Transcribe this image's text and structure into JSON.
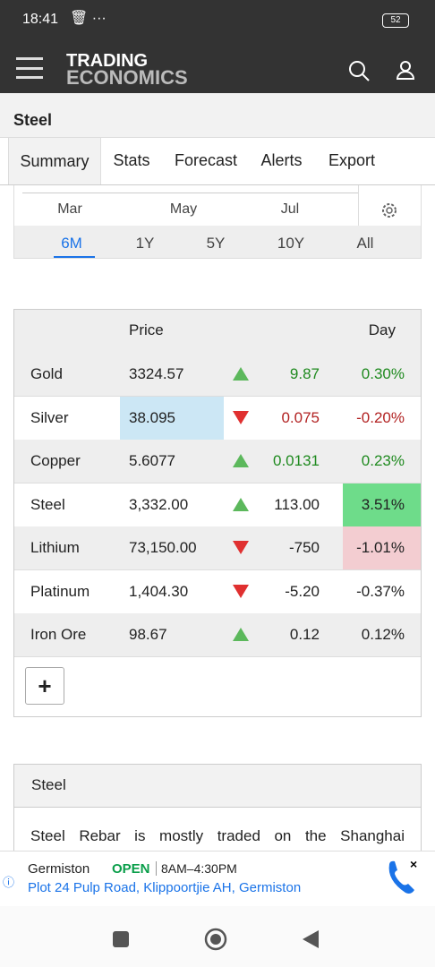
{
  "status_bar": {
    "time": "18:41",
    "battery": "52"
  },
  "header": {
    "logo_top": "TRADING",
    "logo_bottom": "ECONOMICS"
  },
  "page_title": "Steel",
  "tabs": [
    "Summary",
    "Stats",
    "Forecast",
    "Alerts",
    "Export"
  ],
  "active_tab": 0,
  "chart_axis_labels": [
    "Mar",
    "May",
    "Jul"
  ],
  "ranges": [
    "6M",
    "1Y",
    "5Y",
    "10Y",
    "All"
  ],
  "active_range": 0,
  "table": {
    "headers": [
      "Price",
      "Day"
    ],
    "rows": [
      {
        "name": "Gold",
        "price": "3324.57",
        "direction": "up",
        "change": "9.87",
        "percent": "0.30%",
        "tone": "up"
      },
      {
        "name": "Silver",
        "price": "38.095",
        "direction": "down",
        "change": "0.075",
        "percent": "-0.20%",
        "tone": "down",
        "price_highlight": "#cce7f5"
      },
      {
        "name": "Copper",
        "price": "5.6077",
        "direction": "up",
        "change": "0.0131",
        "percent": "0.23%",
        "tone": "up"
      },
      {
        "name": "Steel",
        "price": "3,332.00",
        "direction": "up",
        "change": "113.00",
        "percent": "3.51%",
        "tone": "neutral",
        "percent_highlight": "#6edc8a"
      },
      {
        "name": "Lithium",
        "price": "73,150.00",
        "direction": "down",
        "change": "-750",
        "percent": "-1.01%",
        "tone": "neutral",
        "percent_highlight": "#f3cdd1"
      },
      {
        "name": "Platinum",
        "price": "1,404.30",
        "direction": "down",
        "change": "-5.20",
        "percent": "-0.37%",
        "tone": "neutral"
      },
      {
        "name": "Iron Ore",
        "price": "98.67",
        "direction": "up",
        "change": "0.12",
        "percent": "0.12%",
        "tone": "neutral"
      }
    ]
  },
  "add_button": "+",
  "description": {
    "title": "Steel",
    "text": "Steel Rebar is mostly traded on the Shanghai"
  },
  "ad": {
    "name": "Germiston",
    "status": "OPEN",
    "hours": "8AM–4:30PM",
    "address": "Plot 24 Pulp Road, Klippoortjie AH, Germiston"
  }
}
